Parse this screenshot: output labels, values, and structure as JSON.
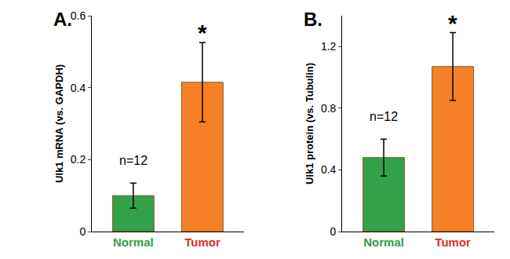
{
  "chart_data": [
    {
      "type": "bar",
      "title": "A.",
      "y_label": "Ulk1 mRNA (vs. GAPDH)",
      "categories": [
        "Normal",
        "Tumor"
      ],
      "values": [
        0.1,
        0.415
      ],
      "errors": [
        0.035,
        0.11
      ],
      "colors": [
        "#33a04a",
        "#f58025"
      ],
      "ylim": [
        0,
        0.6
      ],
      "yticks": [
        0,
        0.2,
        0.4,
        0.6
      ],
      "grid": false,
      "annotations": [
        {
          "text": "n=12",
          "category": "Normal"
        },
        {
          "text": "*",
          "category": "Tumor"
        }
      ]
    },
    {
      "type": "bar",
      "title": "B.",
      "y_label": "Ulk1 protein (vs. Tubulin)",
      "categories": [
        "Normal",
        "Tumor"
      ],
      "values": [
        0.48,
        1.07
      ],
      "errors": [
        0.12,
        0.22
      ],
      "colors": [
        "#33a04a",
        "#f58025"
      ],
      "ylim": [
        0,
        1.4
      ],
      "yticks": [
        0,
        0.4,
        0.8,
        1.2
      ],
      "grid": false,
      "annotations": [
        {
          "text": "n=12",
          "category": "Normal"
        },
        {
          "text": "*",
          "category": "Tumor"
        }
      ]
    }
  ]
}
